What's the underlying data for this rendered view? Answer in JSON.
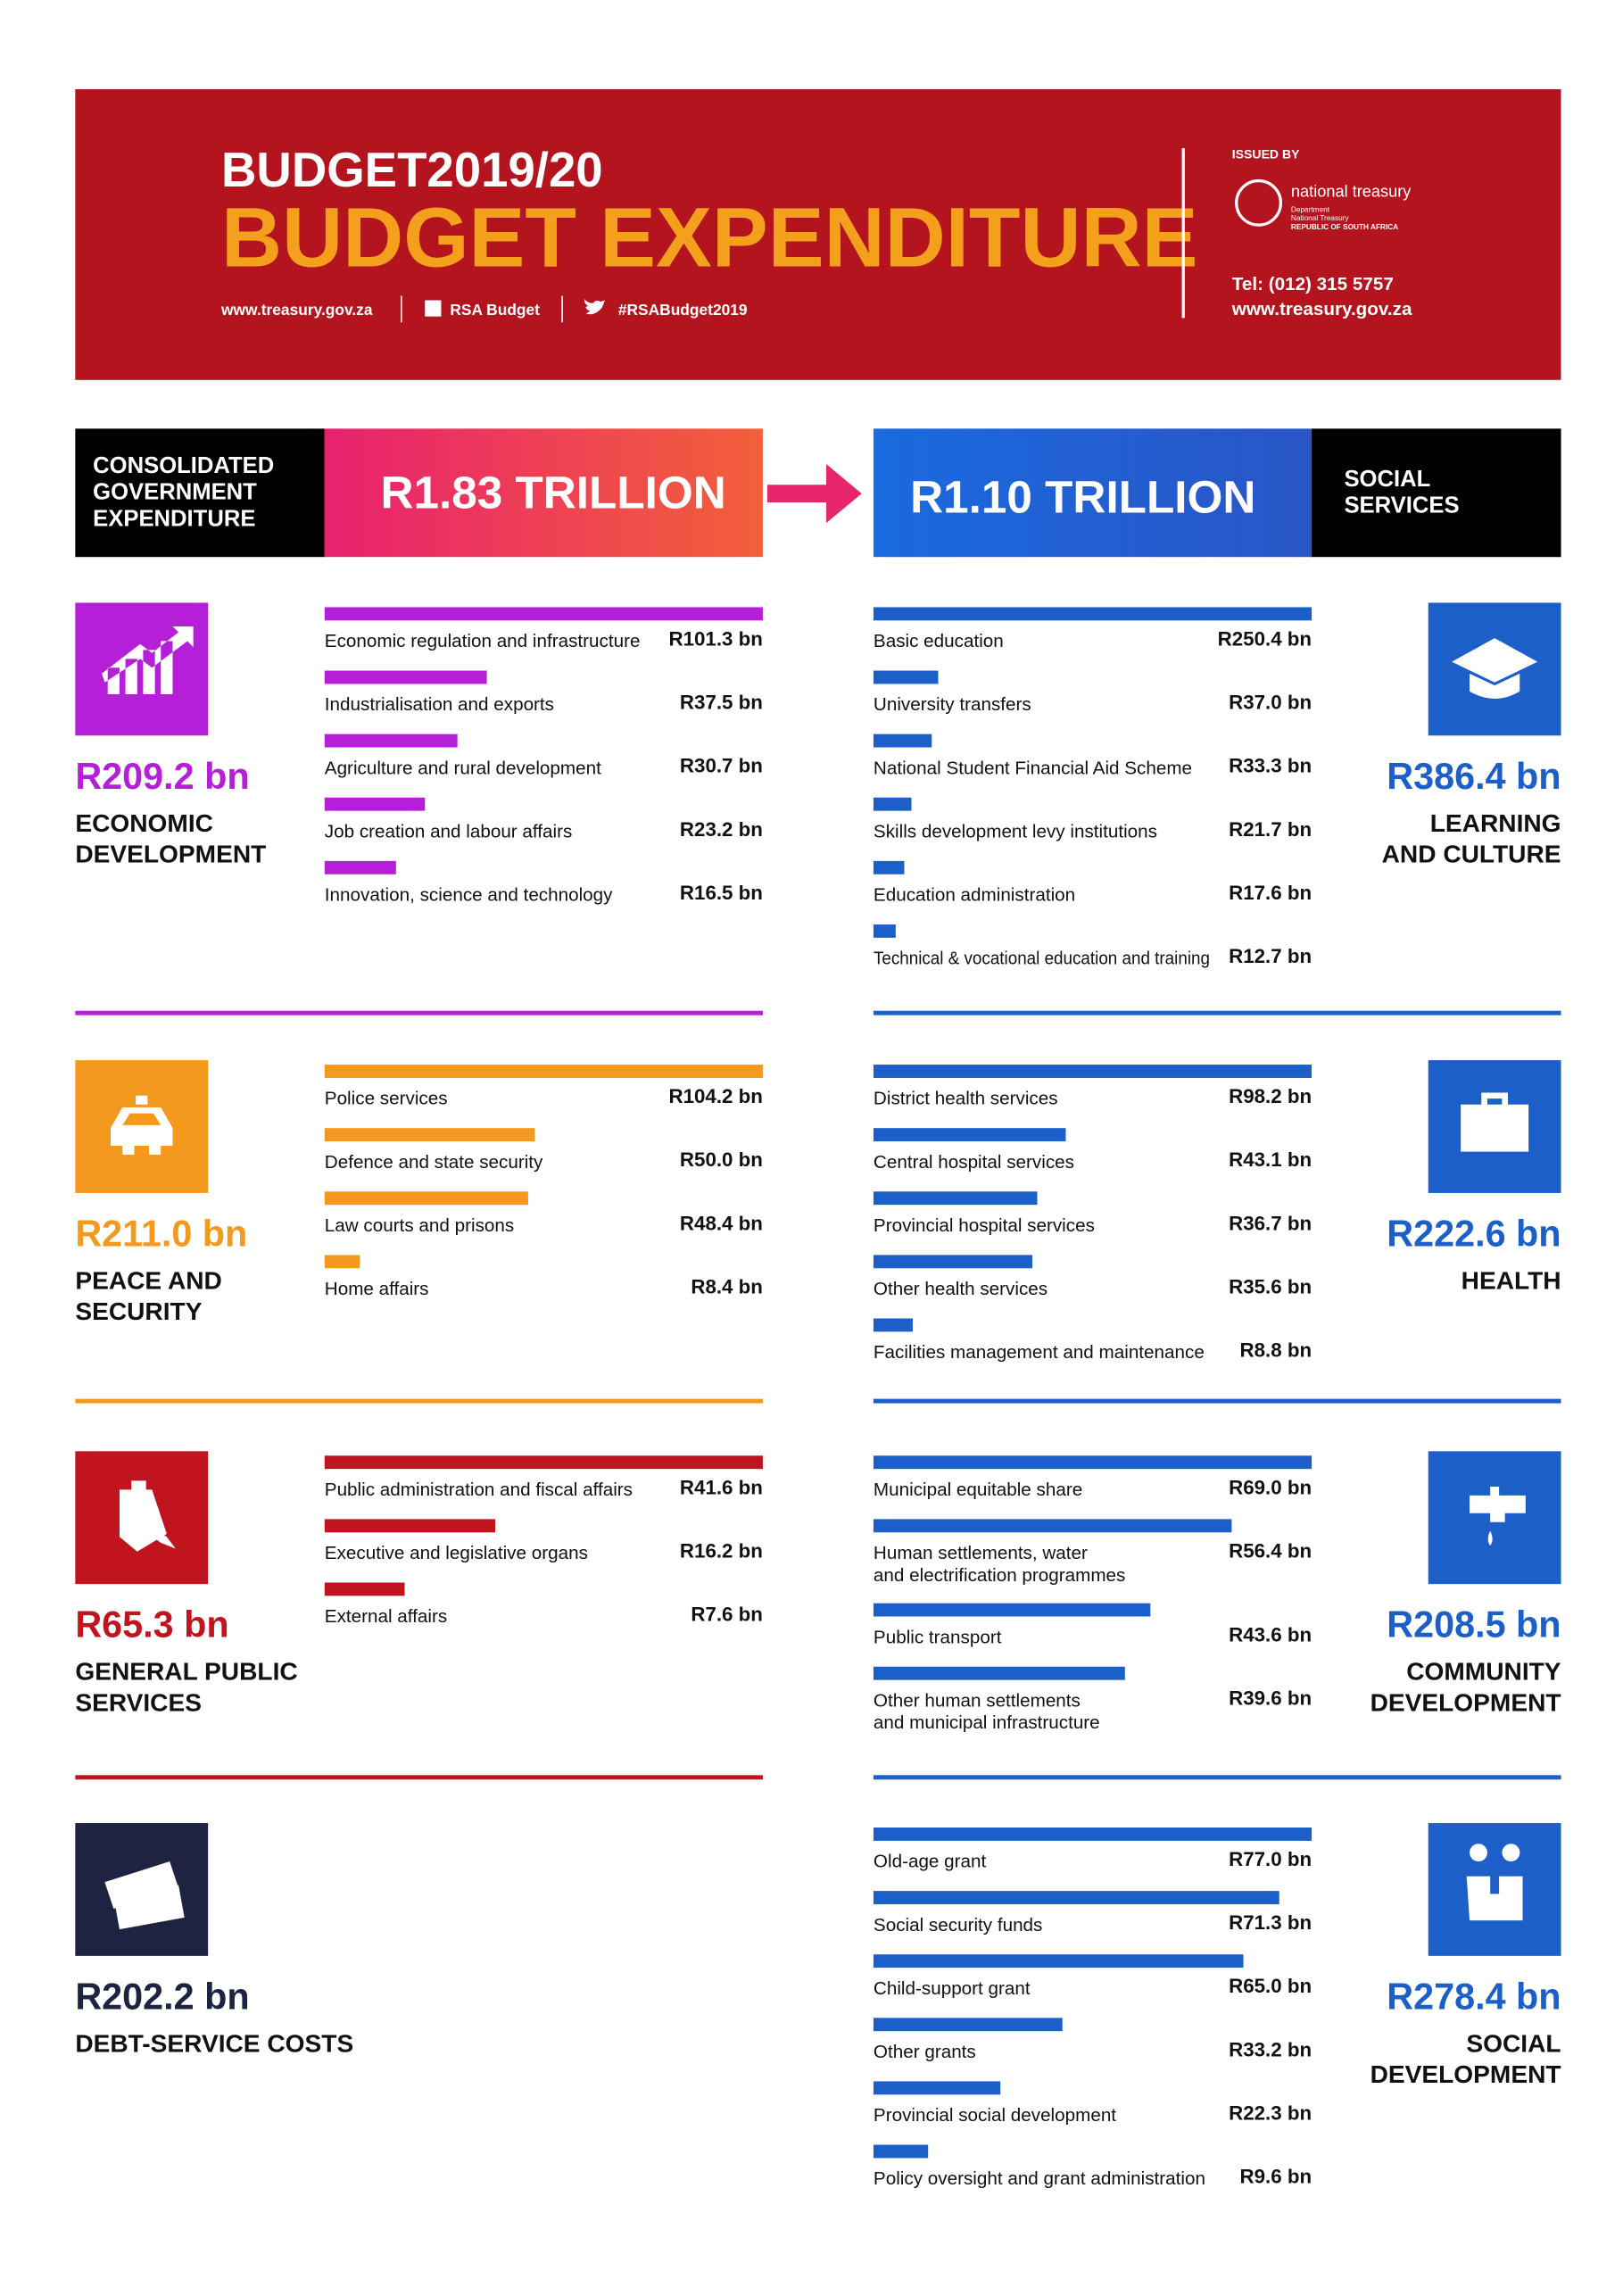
{
  "header": {
    "title": "BUDGET2019/20",
    "subtitle": "BUDGET EXPENDITURE",
    "links": [
      "www.treasury.gov.za",
      "RSA Budget",
      "#RSABudget2019"
    ],
    "issued_by": "ISSUED BY",
    "org": "national treasury",
    "org_lines": [
      "Department",
      "National Treasury",
      "REPUBLIC OF SOUTH AFRICA"
    ],
    "tel": "Tel: (012) 315 5757",
    "web": "www.treasury.gov.za"
  },
  "banner": {
    "left_label": [
      "CONSOLIDATED",
      "GOVERNMENT",
      "EXPENDITURE"
    ],
    "left_total": "R1.83 TRILLION",
    "right_total": "R1.10 TRILLION",
    "right_label": [
      "SOCIAL",
      "SERVICES"
    ]
  },
  "left": [
    {
      "total": "R209.2 bn",
      "name": [
        "ECONOMIC",
        "DEVELOPMENT"
      ],
      "color": "#b61fd8",
      "items": [
        {
          "label": [
            "Economic regulation and infrastructure"
          ],
          "value": 101.3,
          "value_label": "R101.3 bn"
        },
        {
          "label": [
            "Industrialisation and exports"
          ],
          "value": 37.5,
          "value_label": "R37.5 bn"
        },
        {
          "label": [
            "Agriculture and rural development"
          ],
          "value": 30.7,
          "value_label": "R30.7 bn"
        },
        {
          "label": [
            "Job creation and labour affairs"
          ],
          "value": 23.2,
          "value_label": "R23.2 bn"
        },
        {
          "label": [
            "Innovation, science and technology"
          ],
          "value": 16.5,
          "value_label": "R16.5 bn"
        }
      ]
    },
    {
      "total": "R211.0 bn",
      "name": [
        "PEACE AND",
        "SECURITY"
      ],
      "color": "#f39a1e",
      "items": [
        {
          "label": [
            "Police services"
          ],
          "value": 104.2,
          "value_label": "R104.2 bn"
        },
        {
          "label": [
            "Defence and state security"
          ],
          "value": 50.0,
          "value_label": "R50.0 bn"
        },
        {
          "label": [
            "Law courts and prisons"
          ],
          "value": 48.4,
          "value_label": "R48.4 bn"
        },
        {
          "label": [
            "Home affairs"
          ],
          "value": 8.4,
          "value_label": "R8.4 bn"
        }
      ]
    },
    {
      "total": "R65.3 bn",
      "name": [
        "GENERAL PUBLIC",
        "SERVICES"
      ],
      "color": "#c0141f",
      "items": [
        {
          "label": [
            "Public administration and fiscal affairs"
          ],
          "value": 41.6,
          "value_label": "R41.6 bn"
        },
        {
          "label": [
            "Executive and legislative organs"
          ],
          "value": 16.2,
          "value_label": "R16.2 bn"
        },
        {
          "label": [
            "External affairs"
          ],
          "value": 7.6,
          "value_label": "R7.6 bn"
        }
      ]
    },
    {
      "total": "R202.2 bn",
      "name": [
        "DEBT-SERVICE COSTS"
      ],
      "color": "#1d2340",
      "items": []
    }
  ],
  "right": [
    {
      "total": "R386.4 bn",
      "name": [
        "LEARNING",
        "AND CULTURE"
      ],
      "color": "#1c5fc8",
      "items": [
        {
          "label": [
            "Basic education"
          ],
          "value": 250.4,
          "value_label": "R250.4 bn"
        },
        {
          "label": [
            "University transfers"
          ],
          "value": 37.0,
          "value_label": "R37.0 bn"
        },
        {
          "label": [
            "National Student Financial Aid Scheme"
          ],
          "value": 33.3,
          "value_label": "R33.3 bn"
        },
        {
          "label": [
            "Skills development levy institutions"
          ],
          "value": 21.7,
          "value_label": "R21.7 bn"
        },
        {
          "label": [
            "Education administration"
          ],
          "value": 17.6,
          "value_label": "R17.6 bn"
        },
        {
          "label": [
            "Technical & vocational education and training"
          ],
          "value": 12.7,
          "value_label": "R12.7 bn"
        }
      ]
    },
    {
      "total": "R222.6 bn",
      "name": [
        "HEALTH"
      ],
      "color": "#1c5fc8",
      "items": [
        {
          "label": [
            "District health services"
          ],
          "value": 98.2,
          "value_label": "R98.2 bn"
        },
        {
          "label": [
            "Central hospital services"
          ],
          "value": 43.1,
          "value_label": "R43.1 bn"
        },
        {
          "label": [
            "Provincial hospital services"
          ],
          "value": 36.7,
          "value_label": "R36.7 bn"
        },
        {
          "label": [
            "Other health services"
          ],
          "value": 35.6,
          "value_label": "R35.6 bn"
        },
        {
          "label": [
            "Facilities management and maintenance"
          ],
          "value": 8.8,
          "value_label": "R8.8 bn"
        }
      ]
    },
    {
      "total": "R208.5 bn",
      "name": [
        "COMMUNITY",
        "DEVELOPMENT"
      ],
      "color": "#1c5fc8",
      "items": [
        {
          "label": [
            "Municipal equitable share"
          ],
          "value": 69.0,
          "value_label": "R69.0 bn"
        },
        {
          "label": [
            "Human settlements, water",
            "and electrification programmes"
          ],
          "value": 56.4,
          "value_label": "R56.4 bn"
        },
        {
          "label": [
            "Public transport"
          ],
          "value": 43.6,
          "value_label": "R43.6 bn"
        },
        {
          "label": [
            "Other human settlements",
            "and municipal infrastructure"
          ],
          "value": 39.6,
          "value_label": "R39.6 bn"
        }
      ]
    },
    {
      "total": "R278.4 bn",
      "name": [
        "SOCIAL",
        "DEVELOPMENT"
      ],
      "color": "#1c5fc8",
      "items": [
        {
          "label": [
            "Old-age grant"
          ],
          "value": 77.0,
          "value_label": "R77.0 bn"
        },
        {
          "label": [
            "Social security funds"
          ],
          "value": 71.3,
          "value_label": "R71.3 bn"
        },
        {
          "label": [
            "Child-support grant"
          ],
          "value": 65.0,
          "value_label": "R65.0 bn"
        },
        {
          "label": [
            "Other grants"
          ],
          "value": 33.2,
          "value_label": "R33.2 bn"
        },
        {
          "label": [
            "Provincial social development"
          ],
          "value": 22.3,
          "value_label": "R22.3 bn"
        },
        {
          "label": [
            "Policy oversight and grant administration"
          ],
          "value": 9.6,
          "value_label": "R9.6 bn"
        }
      ]
    }
  ]
}
